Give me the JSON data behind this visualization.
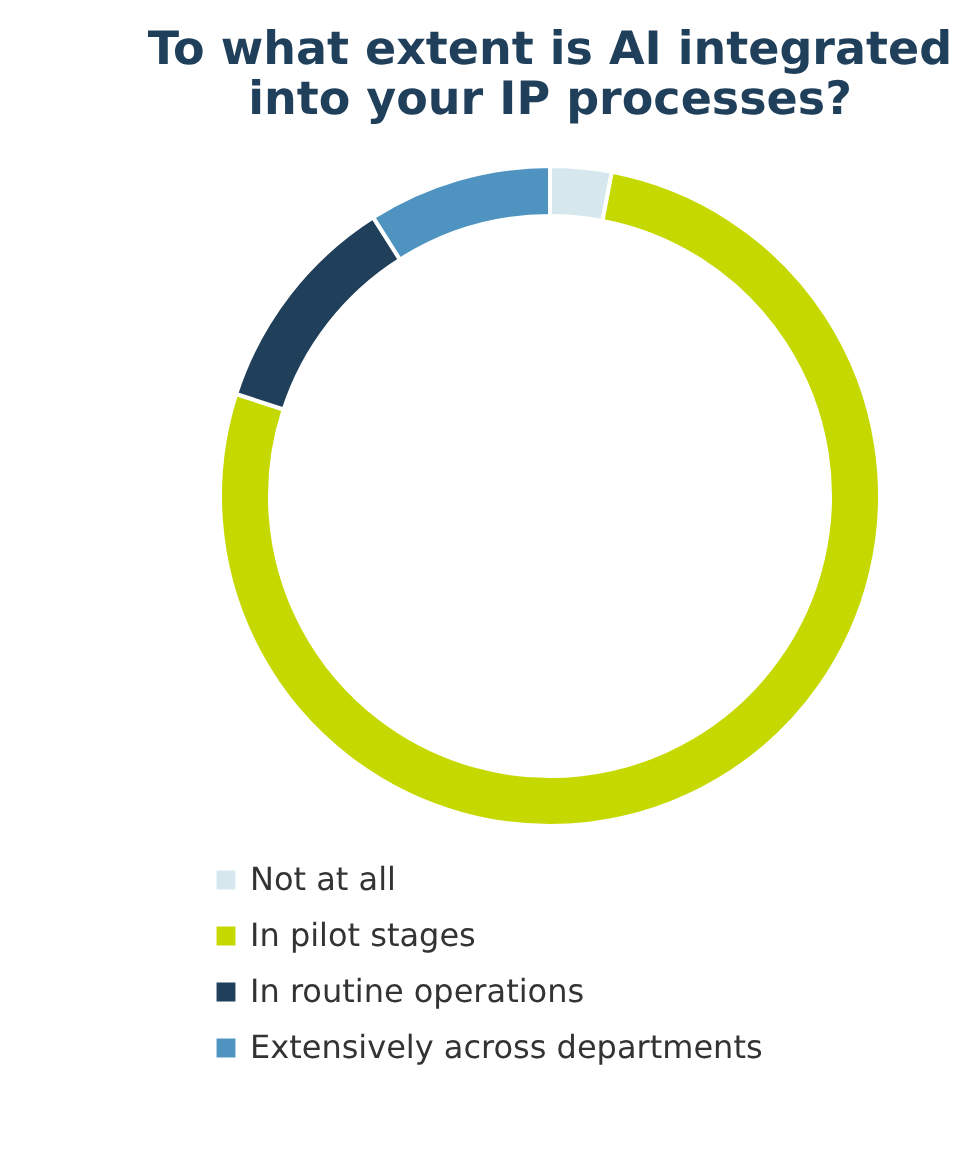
{
  "chart_data": {
    "type": "donut",
    "title": "To what extent is AI integrated into your IP processes?",
    "categories": [
      "Not at all",
      "In pilot stages",
      "In routine operations",
      "Extensively across departments"
    ],
    "values": [
      3,
      77,
      11,
      9
    ],
    "colors": [
      "#d6e8ee",
      "#c5d900",
      "#1f3f5a",
      "#4f94c0"
    ],
    "legend": "bottom"
  }
}
